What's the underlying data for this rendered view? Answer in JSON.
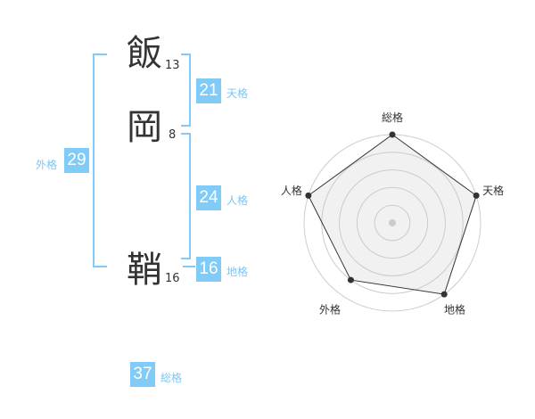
{
  "name": {
    "chars": [
      {
        "char": "飯",
        "strokes": "13"
      },
      {
        "char": "岡",
        "strokes": "8"
      },
      {
        "char": "鞘",
        "strokes": "16"
      }
    ]
  },
  "fortunes": {
    "tenkaku": {
      "value": "21",
      "label": "天格"
    },
    "jinkaku": {
      "value": "24",
      "label": "人格"
    },
    "chikaku": {
      "value": "16",
      "label": "地格"
    },
    "gaikaku": {
      "value": "29",
      "label": "外格"
    },
    "soukaku": {
      "value": "37",
      "label": "総格"
    }
  },
  "colors": {
    "accent": "#80cbf8",
    "text": "#333333"
  },
  "chart_data": {
    "type": "radar",
    "axes": [
      "総格",
      "天格",
      "地格",
      "外格",
      "人格"
    ],
    "values": [
      5,
      5,
      5,
      4,
      5
    ],
    "range": [
      0,
      5
    ],
    "rings": 5
  }
}
